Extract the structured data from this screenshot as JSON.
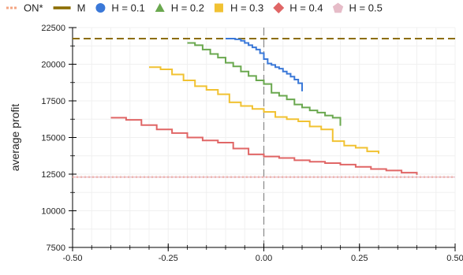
{
  "chart_data": {
    "type": "line",
    "title": "",
    "xlabel": "",
    "ylabel": "average profit",
    "xlim": [
      -0.5,
      0.5
    ],
    "ylim": [
      7500,
      22500
    ],
    "xticks": [
      -0.5,
      -0.25,
      0.0,
      0.25,
      0.5
    ],
    "xtick_labels": [
      "-0.50",
      "-0.25",
      "0.00",
      "0.25",
      "0.50"
    ],
    "yticks": [
      7500,
      10000,
      12500,
      15000,
      17500,
      20000,
      22500
    ],
    "ytick_labels": [
      "7500",
      "10000",
      "12500",
      "15000",
      "17500",
      "20000",
      "22500"
    ],
    "grid": true,
    "legend_position": "top",
    "vertical_marker_x": 0.0,
    "series": [
      {
        "name": "ON*",
        "style": "dotted",
        "color": "#f4a582",
        "legend_symbol": "dots",
        "x": [
          -0.5,
          0.5
        ],
        "y": [
          12300,
          12300
        ]
      },
      {
        "name": "M",
        "style": "dashed",
        "color": "#8c6d00",
        "legend_symbol": "dash",
        "x": [
          -0.5,
          0.5
        ],
        "y": [
          21750,
          21750
        ]
      },
      {
        "name": "H = 0.1",
        "style": "step",
        "color": "#3a78d8",
        "legend_symbol": "circle",
        "x": [
          -0.1,
          -0.085,
          -0.075,
          -0.06,
          -0.05,
          -0.04,
          -0.03,
          -0.02,
          -0.01,
          0.0,
          0.01,
          0.02,
          0.03,
          0.04,
          0.05,
          0.06,
          0.07,
          0.08,
          0.09,
          0.1
        ],
        "y": [
          21750,
          21750,
          21700,
          21600,
          21450,
          21300,
          21150,
          21000,
          20750,
          20350,
          20050,
          19950,
          19800,
          19700,
          19500,
          19350,
          19150,
          18950,
          18700,
          18150
        ]
      },
      {
        "name": "H = 0.2",
        "style": "step",
        "color": "#6aa84f",
        "legend_symbol": "triangle",
        "x": [
          -0.2,
          -0.18,
          -0.16,
          -0.14,
          -0.12,
          -0.1,
          -0.08,
          -0.06,
          -0.04,
          -0.02,
          0.0,
          0.02,
          0.04,
          0.06,
          0.08,
          0.1,
          0.12,
          0.14,
          0.16,
          0.18,
          0.2
        ],
        "y": [
          21450,
          21300,
          21000,
          20700,
          20450,
          20100,
          19850,
          19500,
          19200,
          18900,
          18650,
          18050,
          17850,
          17600,
          17250,
          17050,
          16850,
          16700,
          16500,
          16350,
          15800
        ]
      },
      {
        "name": "H = 0.3",
        "style": "step",
        "color": "#f1c232",
        "legend_symbol": "square",
        "x": [
          -0.3,
          -0.27,
          -0.24,
          -0.21,
          -0.18,
          -0.15,
          -0.12,
          -0.09,
          -0.06,
          -0.03,
          0.0,
          0.03,
          0.06,
          0.09,
          0.12,
          0.15,
          0.18,
          0.21,
          0.24,
          0.27,
          0.3
        ],
        "y": [
          19800,
          19650,
          19300,
          18900,
          18500,
          18250,
          17950,
          17400,
          17150,
          16950,
          16750,
          16400,
          16250,
          16100,
          15750,
          15550,
          14750,
          14450,
          14300,
          14050,
          13900
        ]
      },
      {
        "name": "H = 0.4",
        "style": "step",
        "color": "#e06666",
        "legend_symbol": "diamond",
        "x": [
          -0.4,
          -0.36,
          -0.32,
          -0.28,
          -0.24,
          -0.2,
          -0.16,
          -0.12,
          -0.08,
          -0.04,
          0.0,
          0.04,
          0.08,
          0.12,
          0.16,
          0.2,
          0.24,
          0.28,
          0.32,
          0.36,
          0.4
        ],
        "y": [
          16350,
          16200,
          15850,
          15550,
          15300,
          15000,
          14800,
          14650,
          14250,
          13850,
          13700,
          13600,
          13450,
          13350,
          13250,
          13150,
          13000,
          12850,
          12750,
          12600,
          12450
        ]
      },
      {
        "name": "H = 0.5",
        "style": "line",
        "color": "#e6bcc8",
        "legend_symbol": "pentagon",
        "x": [
          -0.5,
          0.5
        ],
        "y": [
          12300,
          12300
        ]
      }
    ]
  }
}
